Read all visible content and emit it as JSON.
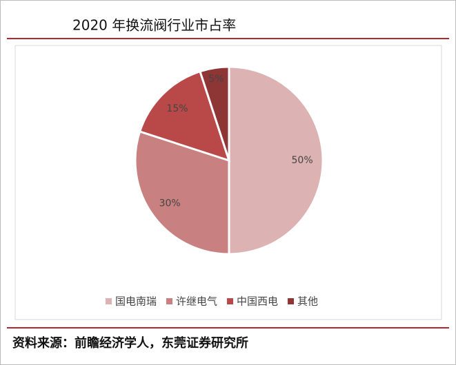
{
  "chart_data": {
    "type": "pie",
    "title": "2020 年换流阀行业市占率",
    "categories": [
      "国电南瑞",
      "许继电气",
      "中国西电",
      "其他"
    ],
    "values": [
      50,
      30,
      15,
      5
    ],
    "value_labels": [
      "50%",
      "30%",
      "15%",
      "5%"
    ],
    "colors": [
      "#dcb2b2",
      "#c98080",
      "#b94848",
      "#8e3535"
    ],
    "legend": "bottom",
    "source": "资料来源：前瞻经济学人，东莞证券研究所"
  }
}
